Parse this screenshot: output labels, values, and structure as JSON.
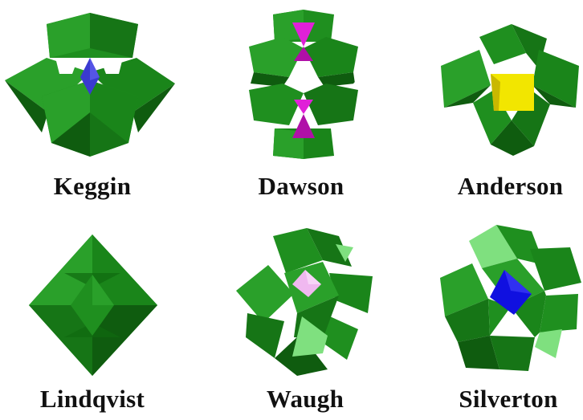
{
  "structures": [
    {
      "name": "Keggin"
    },
    {
      "name": "Dawson"
    },
    {
      "name": "Anderson"
    },
    {
      "name": "Lindqvist"
    },
    {
      "name": "Waugh"
    },
    {
      "name": "Silverton"
    }
  ],
  "colors": {
    "octahedron_dark": "#0f5c0f",
    "octahedron_mid": "#1f8f1f",
    "octahedron_light": "#39b339",
    "octahedron_pale": "#7fe07f",
    "heteroatom_keggin": "#3a3ad0",
    "heteroatom_dawson": "#e020d8",
    "heteroatom_anderson": "#f2e600",
    "heteroatom_waugh": "#f0b8f0",
    "heteroatom_silverton": "#1010e0"
  }
}
